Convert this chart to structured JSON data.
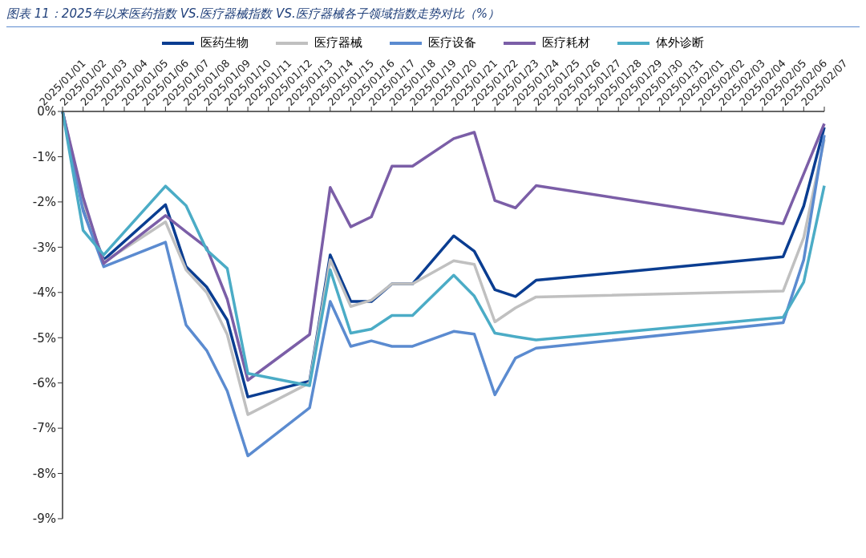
{
  "chart_data": {
    "type": "line",
    "title": "图表 11：2025年以来医药指数 VS.医疗器械指数 VS.医疗器械各子领域指数走势对比（%）",
    "categories": [
      "2025/01/01",
      "2025/01/02",
      "2025/01/03",
      "2025/01/04",
      "2025/01/05",
      "2025/01/06",
      "2025/01/07",
      "2025/01/08",
      "2025/01/09",
      "2025/01/10",
      "2025/01/11",
      "2025/01/12",
      "2025/01/13",
      "2025/01/14",
      "2025/01/15",
      "2025/01/16",
      "2025/01/17",
      "2025/01/18",
      "2025/01/19",
      "2025/01/20",
      "2025/01/21",
      "2025/01/22",
      "2025/01/23",
      "2025/01/24",
      "2025/01/25",
      "2025/01/26",
      "2025/01/27",
      "2025/01/28",
      "2025/01/29",
      "2025/01/30",
      "2025/01/31",
      "2025/02/01",
      "2025/02/02",
      "2025/02/03",
      "2025/02/04",
      "2025/02/05",
      "2025/02/06",
      "2025/02/07"
    ],
    "series": [
      {
        "name": "医药生物",
        "color": "#0a3d91",
        "values": [
          0,
          -2.1,
          -3.28,
          null,
          null,
          -2.06,
          -3.43,
          -3.88,
          -4.61,
          -6.31,
          null,
          null,
          -5.96,
          -3.17,
          -4.2,
          -4.2,
          -3.81,
          -3.81,
          null,
          -2.75,
          -3.09,
          -3.94,
          -4.09,
          -3.73,
          null,
          null,
          null,
          null,
          null,
          null,
          null,
          null,
          null,
          null,
          null,
          -3.21,
          -2.09,
          -0.35
        ]
      },
      {
        "name": "医疗器械",
        "color": "#c0c0c0",
        "values": [
          0,
          -2.0,
          -3.33,
          null,
          null,
          -2.44,
          -3.5,
          -4.0,
          -4.93,
          -6.7,
          null,
          null,
          -6.0,
          -3.28,
          -4.31,
          -4.17,
          -3.81,
          -3.81,
          null,
          -3.3,
          -3.38,
          -4.65,
          -4.34,
          -4.1,
          null,
          null,
          null,
          null,
          null,
          null,
          null,
          null,
          null,
          null,
          null,
          -3.97,
          -2.79,
          -0.62
        ]
      },
      {
        "name": "医疗设备",
        "color": "#5b8bd0",
        "values": [
          0,
          -2.2,
          -3.43,
          null,
          null,
          -2.89,
          -4.72,
          -5.28,
          -6.18,
          -7.61,
          null,
          null,
          -6.55,
          -4.2,
          -5.19,
          -5.07,
          -5.19,
          -5.19,
          null,
          -4.86,
          -4.92,
          -6.26,
          -5.45,
          -5.23,
          null,
          null,
          null,
          null,
          null,
          null,
          null,
          null,
          null,
          null,
          null,
          -4.67,
          -3.28,
          -0.52
        ]
      },
      {
        "name": "医疗耗材",
        "color": "#7b5ea7",
        "values": [
          0,
          -1.9,
          -3.36,
          null,
          null,
          -2.3,
          -2.66,
          -3.01,
          -4.15,
          -5.94,
          null,
          null,
          -4.93,
          -1.68,
          -2.55,
          -2.33,
          -1.21,
          -1.21,
          null,
          -0.6,
          -0.46,
          -1.97,
          -2.13,
          -1.64,
          null,
          null,
          null,
          null,
          null,
          null,
          null,
          null,
          null,
          null,
          null,
          -2.48,
          -1.38,
          -0.27
        ]
      },
      {
        "name": "体外诊断",
        "color": "#4bacc6",
        "values": [
          0,
          -2.63,
          -3.17,
          null,
          null,
          -1.65,
          -2.08,
          -3.06,
          -3.47,
          -5.79,
          null,
          null,
          -6.06,
          -3.5,
          -4.9,
          -4.81,
          -4.51,
          -4.51,
          null,
          -3.62,
          -4.08,
          -4.9,
          -4.98,
          -5.05,
          null,
          null,
          null,
          null,
          null,
          null,
          null,
          null,
          null,
          null,
          null,
          -4.55,
          -3.77,
          -1.64
        ]
      }
    ],
    "ylim": [
      -9,
      0
    ],
    "yticks": [
      {
        "value": 0,
        "label": "0%"
      },
      {
        "value": -1,
        "label": "-1%"
      },
      {
        "value": -2,
        "label": "-2%"
      },
      {
        "value": -3,
        "label": "-3%"
      },
      {
        "value": -4,
        "label": "-4%"
      },
      {
        "value": -5,
        "label": "-5%"
      },
      {
        "value": -6,
        "label": "-6%"
      },
      {
        "value": -7,
        "label": "-7%"
      },
      {
        "value": -8,
        "label": "-8%"
      },
      {
        "value": -9,
        "label": "-9%"
      }
    ],
    "grid": false,
    "legend": "top",
    "marker": "none",
    "line_style": "solid"
  }
}
